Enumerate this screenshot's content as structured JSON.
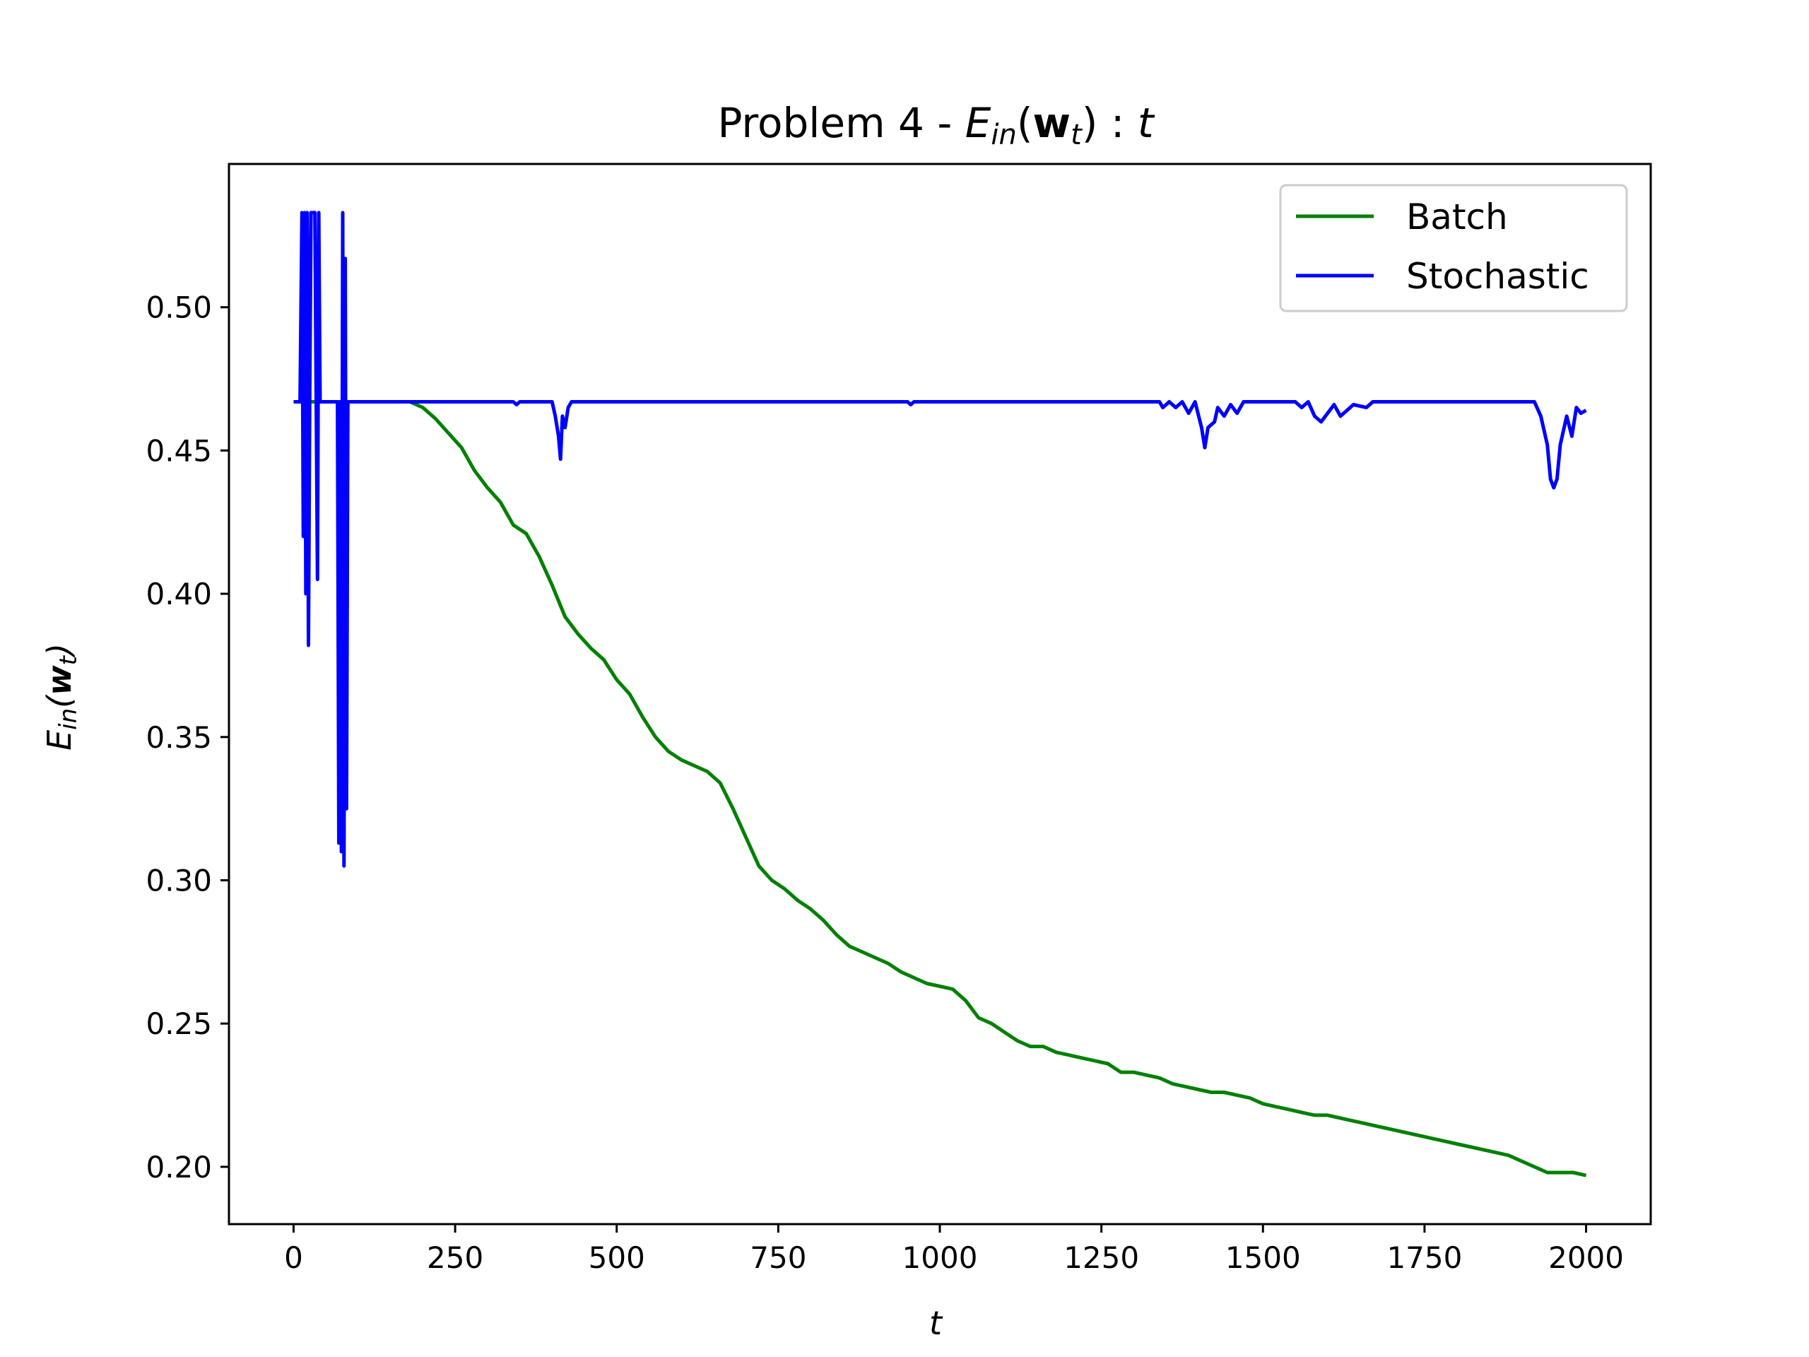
{
  "chart_data": {
    "type": "line",
    "title": {
      "prefix": "Problem 4 - ",
      "math": {
        "E": "E",
        "sub": "in",
        "open": "(",
        "w": "w",
        "wsub": "t",
        "close": ")",
        "colon": " : ",
        "t": "t"
      }
    },
    "xlabel": "t",
    "ylabel": {
      "E": "E",
      "sub": "in",
      "open": "(",
      "w": "w",
      "wsub": "t",
      "close": ")"
    },
    "xlim": [
      -100,
      2100
    ],
    "ylim": [
      0.18,
      0.55
    ],
    "xticks": [
      0,
      250,
      500,
      750,
      1000,
      1250,
      1500,
      1750,
      2000
    ],
    "xtick_labels": [
      "0",
      "250",
      "500",
      "750",
      "1000",
      "1250",
      "1500",
      "1750",
      "2000"
    ],
    "yticks": [
      0.2,
      0.25,
      0.3,
      0.35,
      0.4,
      0.45,
      0.5
    ],
    "ytick_labels": [
      "0.20",
      "0.25",
      "0.30",
      "0.35",
      "0.40",
      "0.45",
      "0.50"
    ],
    "grid": false,
    "legend": {
      "placement": "top-right",
      "entries": [
        "Batch",
        "Stochastic"
      ]
    },
    "series": [
      {
        "name": "Batch",
        "color": "#008000",
        "points": [
          [
            0,
            0.467
          ],
          [
            180,
            0.467
          ],
          [
            200,
            0.465
          ],
          [
            220,
            0.461
          ],
          [
            240,
            0.456
          ],
          [
            260,
            0.451
          ],
          [
            280,
            0.443
          ],
          [
            300,
            0.437
          ],
          [
            320,
            0.432
          ],
          [
            340,
            0.424
          ],
          [
            360,
            0.421
          ],
          [
            380,
            0.413
          ],
          [
            400,
            0.403
          ],
          [
            420,
            0.392
          ],
          [
            440,
            0.386
          ],
          [
            460,
            0.381
          ],
          [
            480,
            0.377
          ],
          [
            500,
            0.37
          ],
          [
            520,
            0.365
          ],
          [
            540,
            0.357
          ],
          [
            560,
            0.35
          ],
          [
            580,
            0.345
          ],
          [
            600,
            0.342
          ],
          [
            620,
            0.34
          ],
          [
            640,
            0.338
          ],
          [
            660,
            0.334
          ],
          [
            680,
            0.325
          ],
          [
            700,
            0.315
          ],
          [
            720,
            0.305
          ],
          [
            740,
            0.3
          ],
          [
            760,
            0.297
          ],
          [
            780,
            0.293
          ],
          [
            800,
            0.29
          ],
          [
            820,
            0.286
          ],
          [
            840,
            0.281
          ],
          [
            860,
            0.277
          ],
          [
            880,
            0.275
          ],
          [
            900,
            0.273
          ],
          [
            920,
            0.271
          ],
          [
            940,
            0.268
          ],
          [
            960,
            0.266
          ],
          [
            980,
            0.264
          ],
          [
            1000,
            0.263
          ],
          [
            1020,
            0.262
          ],
          [
            1040,
            0.258
          ],
          [
            1060,
            0.252
          ],
          [
            1080,
            0.25
          ],
          [
            1100,
            0.247
          ],
          [
            1120,
            0.244
          ],
          [
            1140,
            0.242
          ],
          [
            1160,
            0.242
          ],
          [
            1180,
            0.24
          ],
          [
            1200,
            0.239
          ],
          [
            1220,
            0.238
          ],
          [
            1240,
            0.237
          ],
          [
            1260,
            0.236
          ],
          [
            1280,
            0.233
          ],
          [
            1300,
            0.233
          ],
          [
            1320,
            0.232
          ],
          [
            1340,
            0.231
          ],
          [
            1360,
            0.229
          ],
          [
            1380,
            0.228
          ],
          [
            1400,
            0.227
          ],
          [
            1420,
            0.226
          ],
          [
            1440,
            0.226
          ],
          [
            1460,
            0.225
          ],
          [
            1480,
            0.224
          ],
          [
            1500,
            0.222
          ],
          [
            1520,
            0.221
          ],
          [
            1540,
            0.22
          ],
          [
            1560,
            0.219
          ],
          [
            1580,
            0.218
          ],
          [
            1600,
            0.218
          ],
          [
            1620,
            0.217
          ],
          [
            1640,
            0.216
          ],
          [
            1660,
            0.215
          ],
          [
            1680,
            0.214
          ],
          [
            1700,
            0.213
          ],
          [
            1720,
            0.212
          ],
          [
            1740,
            0.211
          ],
          [
            1760,
            0.21
          ],
          [
            1780,
            0.209
          ],
          [
            1800,
            0.208
          ],
          [
            1820,
            0.207
          ],
          [
            1840,
            0.206
          ],
          [
            1860,
            0.205
          ],
          [
            1880,
            0.204
          ],
          [
            1900,
            0.202
          ],
          [
            1920,
            0.2
          ],
          [
            1940,
            0.198
          ],
          [
            1960,
            0.198
          ],
          [
            1980,
            0.198
          ],
          [
            2000,
            0.197
          ]
        ]
      },
      {
        "name": "Stochastic",
        "color": "#0000ff",
        "points": [
          [
            0,
            0.467
          ],
          [
            10,
            0.467
          ],
          [
            13,
            0.533
          ],
          [
            15,
            0.42
          ],
          [
            17,
            0.533
          ],
          [
            19,
            0.4
          ],
          [
            21,
            0.533
          ],
          [
            23,
            0.382
          ],
          [
            25,
            0.467
          ],
          [
            27,
            0.533
          ],
          [
            33,
            0.533
          ],
          [
            37,
            0.405
          ],
          [
            39,
            0.533
          ],
          [
            41,
            0.467
          ],
          [
            60,
            0.467
          ],
          [
            68,
            0.467
          ],
          [
            70,
            0.313
          ],
          [
            72,
            0.467
          ],
          [
            74,
            0.31
          ],
          [
            76,
            0.533
          ],
          [
            78,
            0.305
          ],
          [
            80,
            0.517
          ],
          [
            82,
            0.325
          ],
          [
            84,
            0.467
          ],
          [
            340,
            0.467
          ],
          [
            345,
            0.466
          ],
          [
            350,
            0.467
          ],
          [
            400,
            0.467
          ],
          [
            405,
            0.462
          ],
          [
            410,
            0.455
          ],
          [
            413,
            0.447
          ],
          [
            416,
            0.462
          ],
          [
            420,
            0.458
          ],
          [
            425,
            0.465
          ],
          [
            430,
            0.467
          ],
          [
            950,
            0.467
          ],
          [
            955,
            0.466
          ],
          [
            960,
            0.467
          ],
          [
            1340,
            0.467
          ],
          [
            1345,
            0.465
          ],
          [
            1355,
            0.467
          ],
          [
            1365,
            0.465
          ],
          [
            1375,
            0.467
          ],
          [
            1385,
            0.463
          ],
          [
            1395,
            0.467
          ],
          [
            1405,
            0.458
          ],
          [
            1410,
            0.451
          ],
          [
            1415,
            0.458
          ],
          [
            1425,
            0.46
          ],
          [
            1430,
            0.465
          ],
          [
            1440,
            0.462
          ],
          [
            1450,
            0.466
          ],
          [
            1460,
            0.463
          ],
          [
            1470,
            0.467
          ],
          [
            1550,
            0.467
          ],
          [
            1560,
            0.465
          ],
          [
            1570,
            0.467
          ],
          [
            1580,
            0.462
          ],
          [
            1590,
            0.46
          ],
          [
            1600,
            0.463
          ],
          [
            1610,
            0.466
          ],
          [
            1620,
            0.462
          ],
          [
            1630,
            0.464
          ],
          [
            1640,
            0.466
          ],
          [
            1660,
            0.465
          ],
          [
            1670,
            0.467
          ],
          [
            1920,
            0.467
          ],
          [
            1930,
            0.462
          ],
          [
            1940,
            0.452
          ],
          [
            1945,
            0.44
          ],
          [
            1950,
            0.437
          ],
          [
            1955,
            0.44
          ],
          [
            1960,
            0.452
          ],
          [
            1970,
            0.462
          ],
          [
            1978,
            0.455
          ],
          [
            1985,
            0.465
          ],
          [
            1992,
            0.463
          ],
          [
            2000,
            0.464
          ]
        ]
      }
    ]
  }
}
